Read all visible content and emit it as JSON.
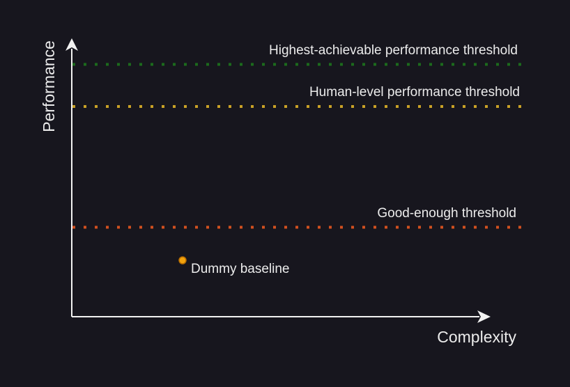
{
  "diagram": {
    "y_axis_label": "Performance",
    "x_axis_label": "Complexity",
    "thresholds": {
      "highest": {
        "label": "Highest-achievable performance threshold",
        "color": "#1c6b1c"
      },
      "human": {
        "label": "Human-level performance threshold",
        "color": "#c9a227"
      },
      "good_enough": {
        "label": "Good-enough threshold",
        "color": "#d2501f"
      }
    },
    "baseline": {
      "label": "Dummy baseline",
      "color": "#f2a20d"
    },
    "axis_color": "#f2f2f2",
    "background": "#17161e"
  }
}
